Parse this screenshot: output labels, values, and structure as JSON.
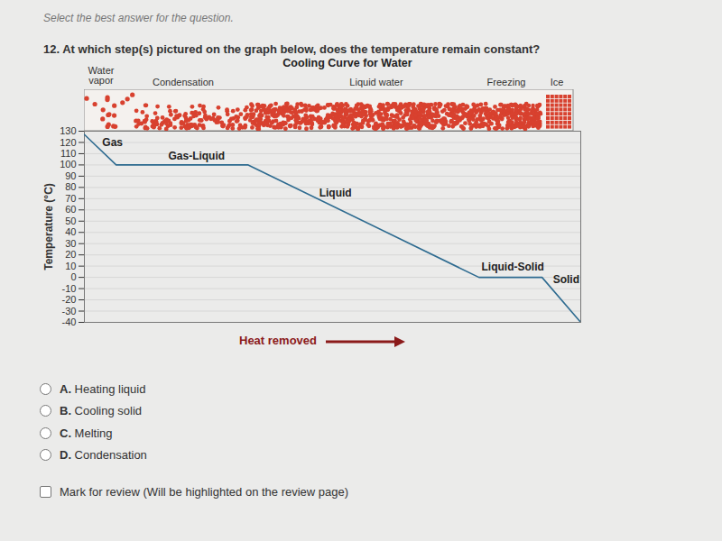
{
  "header": {
    "instruction": "Select the best answer for the question."
  },
  "question": {
    "number": "12.",
    "text": "At which step(s) pictured on the graph below, does the temperature remain constant?"
  },
  "chart_data": {
    "type": "line",
    "title": "Cooling Curve for Water",
    "phases": [
      "Water vapor",
      "Condensation",
      "Liquid water",
      "Freezing",
      "Ice"
    ],
    "xlabel": "Heat removed",
    "ylabel": "Temperature (°C)",
    "x": [
      0,
      6.4,
      33,
      79.5,
      92.2,
      100
    ],
    "values": [
      127,
      100,
      100,
      0,
      0,
      -40
    ],
    "color": "#2e6b90",
    "xlim": [
      0,
      100
    ],
    "ylim": [
      -40,
      130
    ],
    "yticks": [
      130,
      120,
      110,
      100,
      90,
      80,
      70,
      60,
      50,
      40,
      30,
      20,
      10,
      0,
      -10,
      -20,
      -30,
      -40
    ],
    "grid": true,
    "tick_labels": "y",
    "annotations": [
      {
        "text": "Gas",
        "x": 3.6,
        "y": 120
      },
      {
        "text": "Gas-Liquid",
        "x": 16.9,
        "y": 108
      },
      {
        "text": "Liquid",
        "x": 47.3,
        "y": 75
      },
      {
        "text": "Liquid-Solid",
        "x": 80,
        "y": 9
      },
      {
        "text": "Solid",
        "x": 94.4,
        "y": -2
      }
    ]
  },
  "options": [
    {
      "letter": "A.",
      "text": "Heating liquid"
    },
    {
      "letter": "B.",
      "text": "Cooling solid"
    },
    {
      "letter": "C.",
      "text": "Melting"
    },
    {
      "letter": "D.",
      "text": "Condensation"
    }
  ],
  "review": "Mark for review (Will be highlighted on the review page)"
}
